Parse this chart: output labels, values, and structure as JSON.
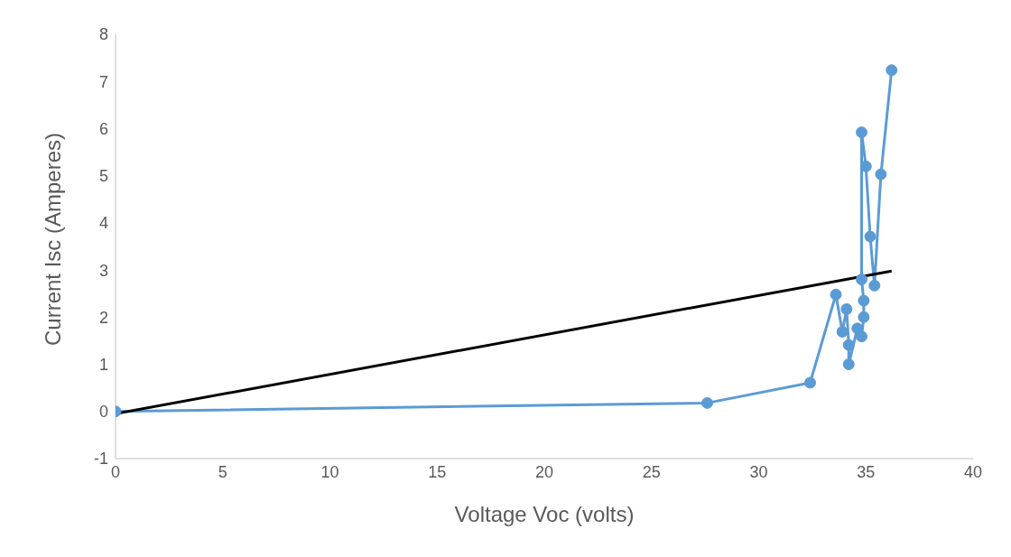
{
  "chart_data": {
    "type": "line",
    "xlabel": "Voltage Voc (volts)",
    "ylabel": "Current Isc (Amperes)",
    "xlim": [
      0,
      40
    ],
    "xticks": [
      0,
      5,
      10,
      15,
      20,
      25,
      30,
      35,
      40
    ],
    "ylim": [
      -1,
      8
    ],
    "yticks": [
      -1,
      0,
      1,
      2,
      3,
      4,
      5,
      6,
      7,
      8
    ],
    "grid": false,
    "legend": false,
    "marker": "circle",
    "line_style": "solid",
    "series": [
      {
        "color": "#5b9bd5",
        "x": [
          0,
          27.6,
          32.4,
          33.6,
          33.9,
          34.1,
          34.2,
          34.2,
          34.6,
          34.8,
          34.9,
          34.9,
          34.8,
          34.8,
          35.0,
          35.2,
          35.4,
          35.7,
          36.2
        ],
        "values": [
          0,
          0.18,
          0.61,
          2.48,
          1.69,
          2.17,
          1.41,
          1.0,
          1.76,
          1.59,
          2.0,
          2.35,
          2.8,
          5.92,
          5.2,
          3.71,
          2.67,
          5.03,
          7.24
        ]
      },
      {
        "type": "line",
        "marker": "none",
        "color": "#000000",
        "x": [
          0,
          36.2
        ],
        "values": [
          -0.05,
          2.98
        ]
      }
    ]
  }
}
